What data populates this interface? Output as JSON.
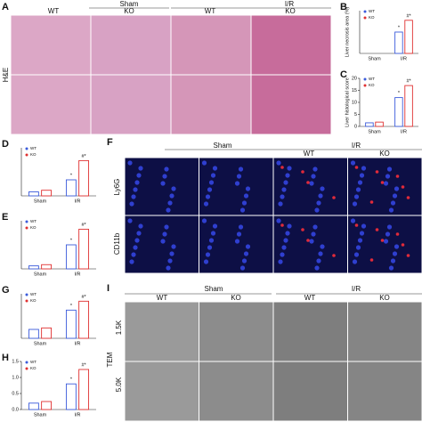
{
  "panels": {
    "A": {
      "label": "A",
      "headers": [
        "Sham",
        "I/R"
      ],
      "columns": [
        "WT",
        "KO",
        "WT",
        "KO"
      ],
      "rows": [
        "H&E"
      ]
    },
    "F": {
      "label": "F",
      "headers": [
        "Sham",
        "I/R"
      ],
      "columns": [
        "WT",
        "KO"
      ],
      "rows": [
        "Ly6G",
        "CD11b"
      ]
    },
    "I": {
      "label": "I",
      "headers": [
        "Sham",
        "I/R"
      ],
      "columns": [
        "WT",
        "KO",
        "WT",
        "KO"
      ],
      "rows": [
        "TEM",
        "1.5K",
        "5.0K"
      ]
    }
  },
  "chart_data": [
    {
      "type": "bar",
      "panel": "B",
      "ylabel": "Liver necrosis area (%)",
      "categories": [
        "Sham",
        "I/R"
      ],
      "ylim": [
        0,
        80
      ],
      "series": [
        {
          "name": "WT",
          "color": "#3b5bdb",
          "values": [
            0,
            40
          ],
          "annotations": [
            null,
            "*"
          ]
        },
        {
          "name": "KO",
          "color": "#e03131",
          "values": [
            0,
            62
          ],
          "annotations": [
            null,
            "#*"
          ]
        }
      ]
    },
    {
      "type": "bar",
      "panel": "C",
      "ylabel": "Liver histological score",
      "categories": [
        "Sham",
        "I/R"
      ],
      "ylim": [
        0,
        20
      ],
      "yticks": [
        0,
        5,
        10,
        15,
        20
      ],
      "series": [
        {
          "name": "WT",
          "color": "#3b5bdb",
          "values": [
            1.5,
            12
          ],
          "annotations": [
            null,
            "*"
          ]
        },
        {
          "name": "KO",
          "color": "#e03131",
          "values": [
            1.8,
            17
          ],
          "annotations": [
            null,
            "#*"
          ]
        }
      ]
    },
    {
      "type": "bar",
      "panel": "D",
      "categories": [
        "Sham",
        "I/R"
      ],
      "ylim": [
        0,
        300
      ],
      "series": [
        {
          "name": "WT",
          "color": "#3b5bdb",
          "values": [
            25,
            100
          ],
          "annotations": [
            null,
            "*"
          ]
        },
        {
          "name": "KO",
          "color": "#e03131",
          "values": [
            35,
            220
          ],
          "annotations": [
            null,
            "#*"
          ]
        }
      ]
    },
    {
      "type": "bar",
      "panel": "E",
      "categories": [
        "Sham",
        "I/R"
      ],
      "ylim": [
        0,
        400
      ],
      "series": [
        {
          "name": "WT",
          "color": "#3b5bdb",
          "values": [
            25,
            200
          ],
          "annotations": [
            null,
            "*"
          ]
        },
        {
          "name": "KO",
          "color": "#e03131",
          "values": [
            35,
            330
          ],
          "annotations": [
            null,
            "#*"
          ]
        }
      ]
    },
    {
      "type": "bar",
      "panel": "G",
      "categories": [
        "Sham",
        "I/R"
      ],
      "ylim": [
        0,
        15
      ],
      "series": [
        {
          "name": "WT",
          "color": "#3b5bdb",
          "values": [
            3,
            9.5
          ],
          "annotations": [
            null,
            "*"
          ]
        },
        {
          "name": "KO",
          "color": "#e03131",
          "values": [
            3.5,
            12.5
          ],
          "annotations": [
            null,
            "#*"
          ]
        }
      ]
    },
    {
      "type": "bar",
      "panel": "H",
      "categories": [
        "Sham",
        "I/R"
      ],
      "ylim": [
        0,
        1.5
      ],
      "yticks": [
        {
          "value": 0,
          "label": "0.0"
        },
        {
          "value": 0.5,
          "label": "0.5"
        },
        {
          "value": 1,
          "label": "1.0"
        },
        {
          "value": 1.5,
          "label": "1.5"
        }
      ],
      "series": [
        {
          "name": "WT",
          "color": "#3b5bdb",
          "values": [
            0.2,
            0.8
          ],
          "annotations": [
            null,
            "*"
          ]
        },
        {
          "name": "KO",
          "color": "#e03131",
          "values": [
            0.25,
            1.25
          ],
          "annotations": [
            null,
            "#*"
          ]
        }
      ]
    }
  ]
}
